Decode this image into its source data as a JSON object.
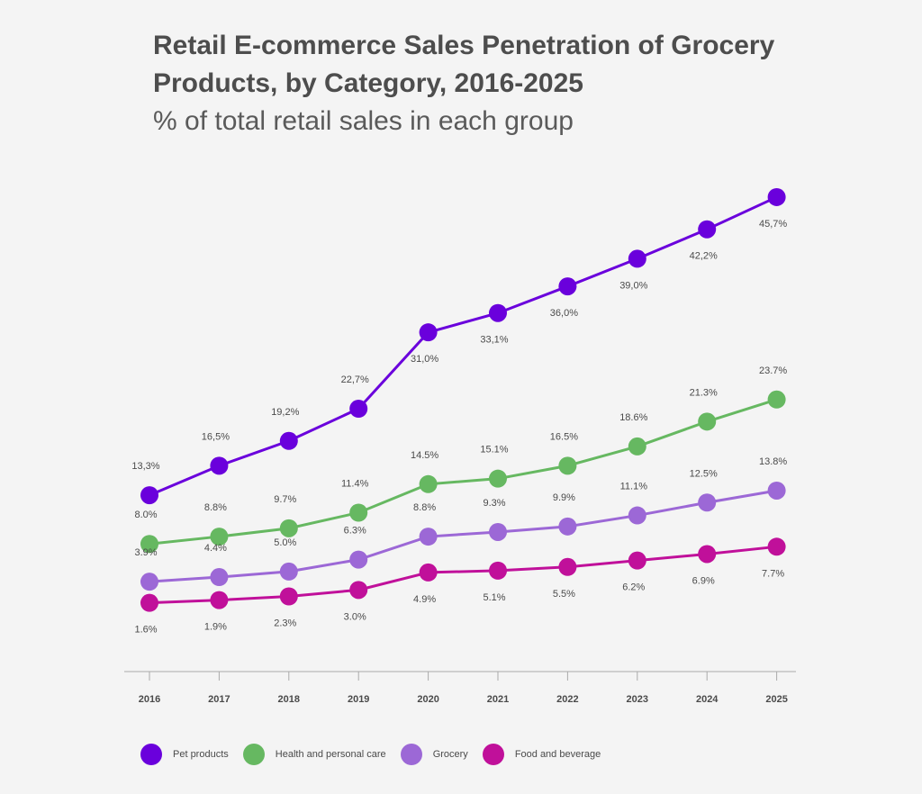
{
  "chart_data": {
    "type": "line",
    "title": "Retail E-commerce Sales Penetration of Grocery Products, by Category, 2016-2025",
    "subtitle": "% of total retail sales in each group",
    "xlabel": "",
    "ylabel": "",
    "x": [
      "2016",
      "2017",
      "2018",
      "2019",
      "2020",
      "2021",
      "2022",
      "2023",
      "2024",
      "2025"
    ],
    "ylim": [
      0,
      50
    ],
    "grid": false,
    "legend": "bottom",
    "series": [
      {
        "name": "Pet products",
        "color": "#6a00dc",
        "values": [
          13.3,
          16.5,
          19.2,
          22.7,
          31.0,
          33.1,
          36.0,
          39.0,
          42.2,
          45.7
        ],
        "labels": [
          "13,3%",
          "16,5%",
          "19,2%",
          "22,7%",
          "31,0%",
          "33,1%",
          "36,0%",
          "39,0%",
          "42,2%",
          "45,7%"
        ]
      },
      {
        "name": "Health and personal care",
        "color": "#66b861",
        "values": [
          8.0,
          8.8,
          9.7,
          11.4,
          14.5,
          15.1,
          16.5,
          18.6,
          21.3,
          23.7
        ],
        "labels": [
          "8.0%",
          "8.8%",
          "9.7%",
          "11.4%",
          "14.5%",
          "15.1%",
          "16.5%",
          "18.6%",
          "21.3%",
          "23.7%"
        ]
      },
      {
        "name": "Grocery",
        "color": "#9c68d6",
        "values": [
          3.9,
          4.4,
          5.0,
          6.3,
          8.8,
          9.3,
          9.9,
          11.1,
          12.5,
          13.8
        ],
        "labels": [
          "3.9%",
          "4.4%",
          "5.0%",
          "6.3%",
          "8.8%",
          "9.3%",
          "9.9%",
          "11.1%",
          "12.5%",
          "13.8%"
        ]
      },
      {
        "name": "Food and beverage",
        "color": "#c0109a",
        "values": [
          1.6,
          1.9,
          2.3,
          3.0,
          4.9,
          5.1,
          5.5,
          6.2,
          6.9,
          7.7
        ],
        "labels": [
          "1.6%",
          "1.9%",
          "2.3%",
          "3.0%",
          "4.9%",
          "5.1%",
          "5.5%",
          "6.2%",
          "6.9%",
          "7.7%"
        ]
      }
    ]
  }
}
